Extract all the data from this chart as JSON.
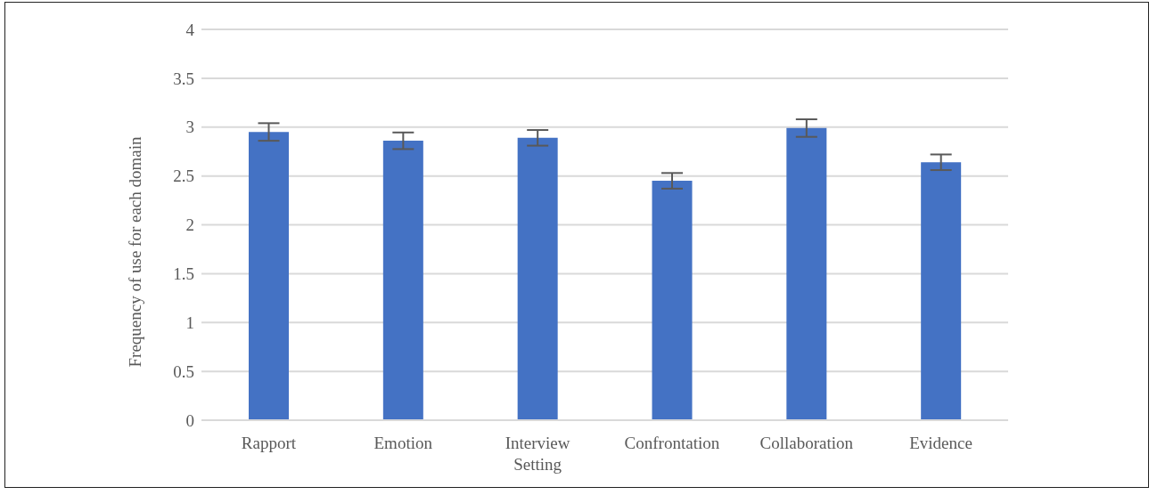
{
  "chart_data": {
    "type": "bar",
    "ylabel": "Frequency of use for each domain",
    "categories": [
      "Rapport",
      "Emotion",
      "Interview Setting",
      "Confrontation",
      "Collaboration",
      "Evidence"
    ],
    "values": [
      2.95,
      2.86,
      2.89,
      2.45,
      2.99,
      2.64
    ],
    "errors": [
      0.09,
      0.085,
      0.08,
      0.08,
      0.09,
      0.08
    ],
    "color": "#4472c4",
    "ylim": [
      0,
      4
    ],
    "yticks": [
      0,
      0.5,
      1,
      1.5,
      2,
      2.5,
      3,
      3.5,
      4
    ],
    "grid": "y",
    "legend": false
  }
}
